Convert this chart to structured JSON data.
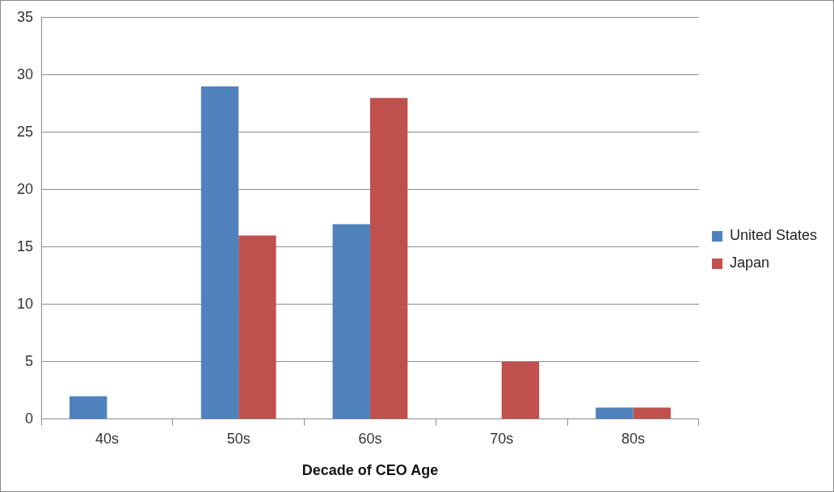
{
  "chart_data": {
    "type": "bar",
    "xlabel": "Decade of CEO Age",
    "categories": [
      "40s",
      "50s",
      "60s",
      "70s",
      "80s"
    ],
    "series": [
      {
        "name": "United States",
        "color": "#4f81bd",
        "values": [
          2,
          29,
          17,
          0,
          1
        ]
      },
      {
        "name": "Japan",
        "color": "#c0504d",
        "values": [
          0,
          16,
          28,
          5,
          1
        ]
      }
    ],
    "ylim": [
      0,
      35
    ],
    "yticks": [
      0,
      5,
      10,
      15,
      20,
      25,
      30,
      35
    ],
    "grid": "y",
    "legend": "right"
  }
}
